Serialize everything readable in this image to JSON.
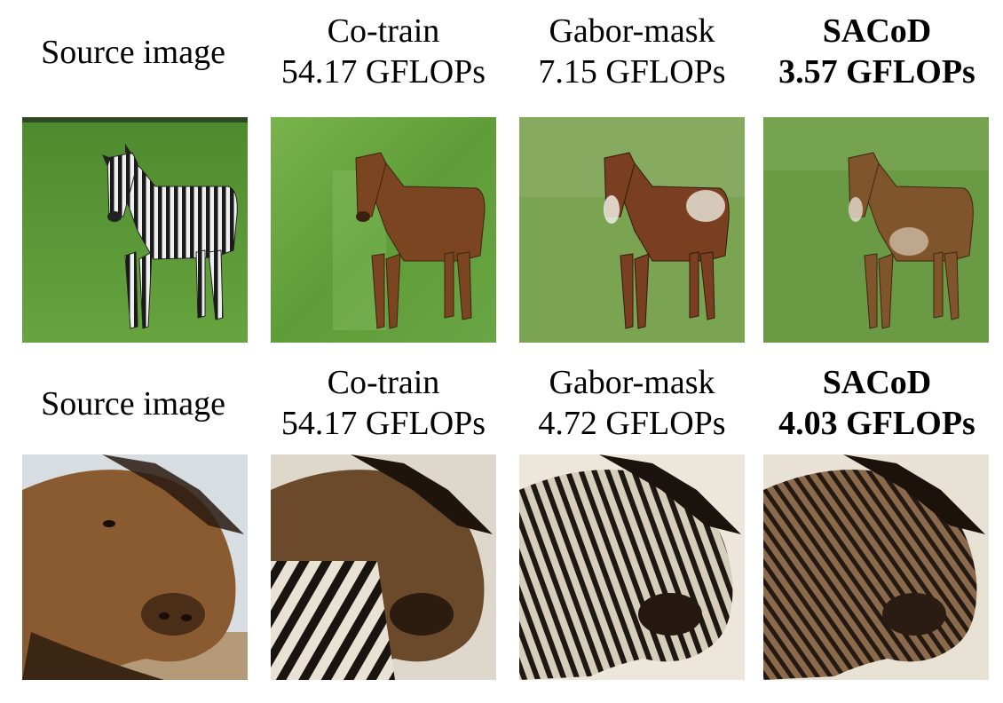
{
  "rows": [
    {
      "source_label": "Source image",
      "methods": [
        {
          "name": "Co-train",
          "flops": "54.17 GFLOPs"
        },
        {
          "name": "Gabor-mask",
          "flops": "7.15 GFLOPs"
        },
        {
          "name": "SACoD",
          "flops": "3.57 GFLOPs"
        }
      ]
    },
    {
      "source_label": "Source image",
      "methods": [
        {
          "name": "Co-train",
          "flops": "54.17 GFLOPs"
        },
        {
          "name": "Gabor-mask",
          "flops": "4.72 GFLOPs"
        },
        {
          "name": "SACoD",
          "flops": "4.03 GFLOPs"
        }
      ]
    }
  ],
  "colors": {
    "grass": "#5c9a3a",
    "horse_brown": "#7a4a26",
    "zebra_black": "#1a1a1a",
    "sky": "#d7dde0"
  }
}
